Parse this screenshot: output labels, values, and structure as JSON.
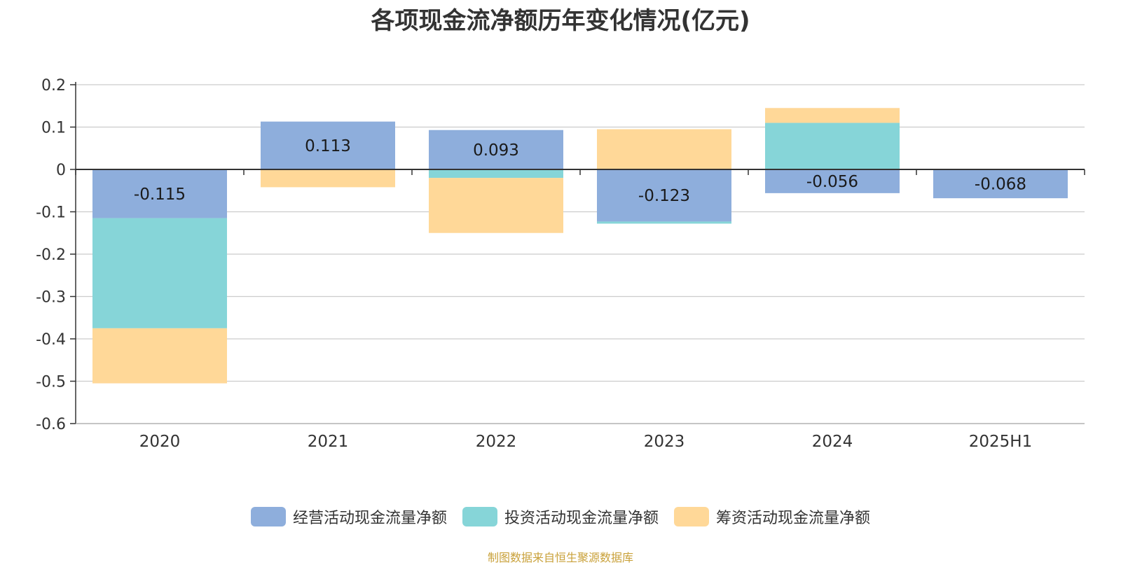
{
  "chart_data": {
    "type": "bar",
    "stacked": true,
    "title": "各项现金流净额历年变化情况(亿元)",
    "categories": [
      "2020",
      "2021",
      "2022",
      "2023",
      "2024",
      "2025H1"
    ],
    "series": [
      {
        "name": "经营活动现金流量净额",
        "color": "#8eaedc",
        "values": [
          -0.115,
          0.113,
          0.093,
          -0.123,
          -0.056,
          -0.068
        ],
        "labels": [
          "-0.115",
          "0.113",
          "0.093",
          "-0.123",
          "-0.056",
          "-0.068"
        ]
      },
      {
        "name": "投资活动现金流量净额",
        "color": "#86d5d8",
        "values": [
          -0.26,
          0.0,
          -0.02,
          -0.005,
          0.11,
          0.0
        ]
      },
      {
        "name": "筹资活动现金流量净额",
        "color": "#ffd898",
        "values": [
          -0.13,
          -0.042,
          -0.13,
          0.095,
          0.035,
          0.0
        ]
      }
    ],
    "yticks": [
      "0.2",
      "0.1",
      "0",
      "-0.1",
      "-0.2",
      "-0.3",
      "-0.4",
      "-0.5",
      "-0.6"
    ],
    "ylim": [
      -0.6,
      0.2
    ],
    "grid": true,
    "legend": "bottom-center"
  },
  "source_note": "制图数据来自恒生聚源数据库"
}
